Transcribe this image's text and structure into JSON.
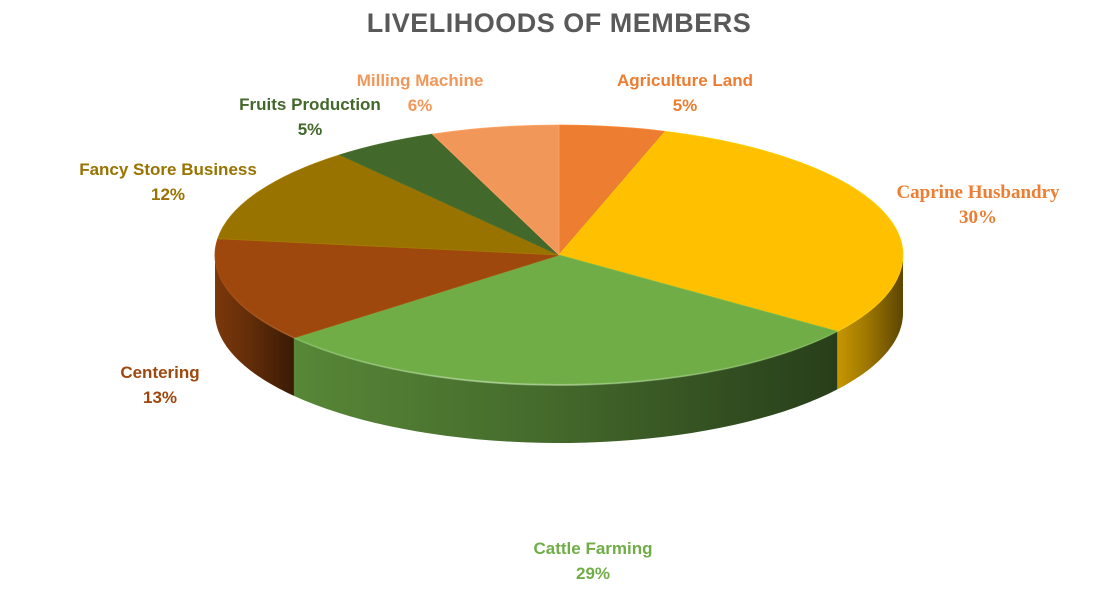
{
  "chart_data": {
    "type": "pie",
    "title": "LIVELIHOODS OF MEMBERS",
    "style": "3d",
    "slices": [
      {
        "label": "Agriculture Land",
        "percent_label": "5%",
        "value": 5,
        "color": "#ED7D31"
      },
      {
        "label": "Caprine Husbandry",
        "percent_label": "30%",
        "value": 30,
        "color": "#FFC000"
      },
      {
        "label": "Cattle Farming",
        "percent_label": "29%",
        "value": 29,
        "color": "#70AD47"
      },
      {
        "label": "Centering",
        "percent_label": "13%",
        "value": 13,
        "color": "#9E480E"
      },
      {
        "label": "Fancy Store Business",
        "percent_label": "12%",
        "value": 12,
        "color": "#997300"
      },
      {
        "label": "Fruits Production",
        "percent_label": "5%",
        "value": 5,
        "color": "#43682B"
      },
      {
        "label": "Milling Machine",
        "percent_label": "6%",
        "value": 6,
        "color": "#F1975A"
      }
    ],
    "label_colors": {
      "Agriculture Land": "#ED7D31",
      "Caprine Husbandry": "#ED7D31",
      "Cattle Farming": "#70AD47",
      "Centering": "#9E480E",
      "Fancy Store Business": "#997300",
      "Fruits Production": "#43682B",
      "Milling Machine": "#F1975A"
    },
    "legend": "none"
  }
}
